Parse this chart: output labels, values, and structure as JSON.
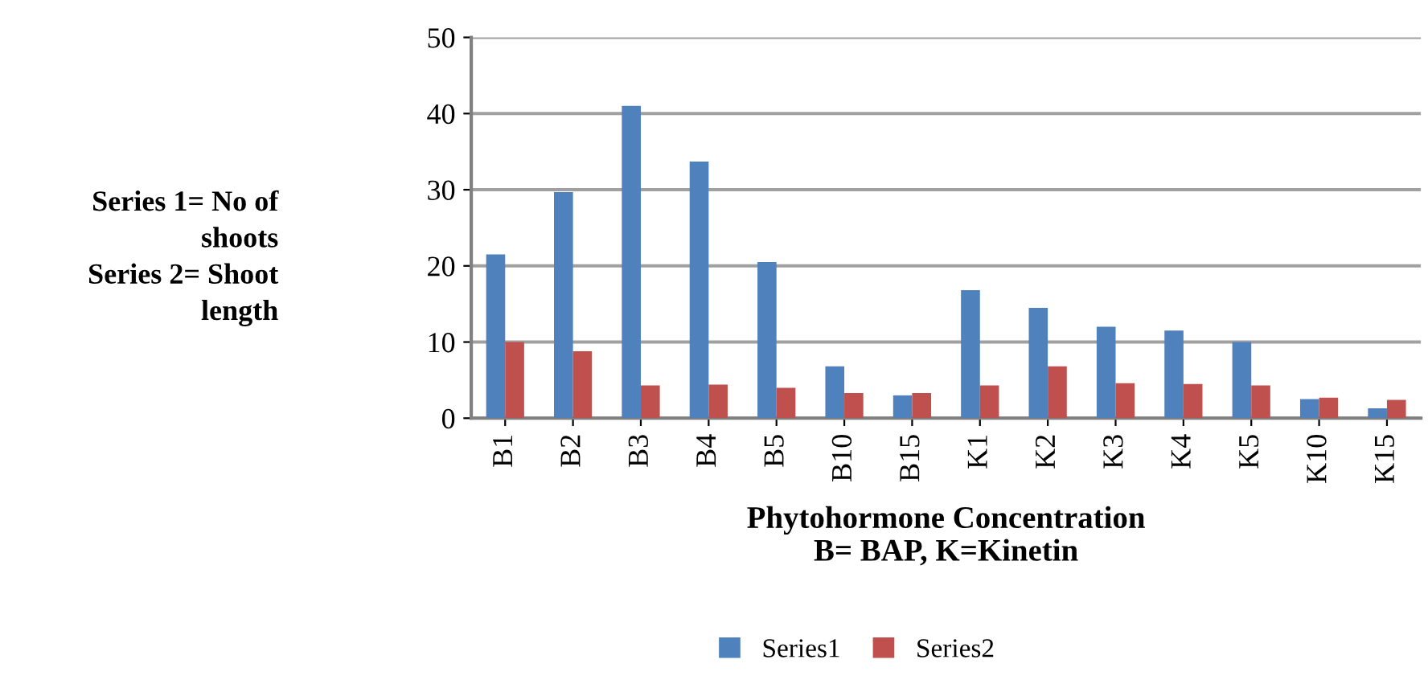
{
  "chart_data": {
    "type": "bar",
    "categories": [
      "B1",
      "B2",
      "B3",
      "B4",
      "B5",
      "B10",
      "B15",
      "K1",
      "K2",
      "K3",
      "K4",
      "K5",
      "K10",
      "K15"
    ],
    "series": [
      {
        "name": "Series1",
        "color": "#4f81bd",
        "values": [
          21.5,
          29.7,
          41,
          33.7,
          20.5,
          6.8,
          3,
          16.8,
          14.5,
          12,
          11.5,
          10,
          2.5,
          1.3
        ]
      },
      {
        "name": "Series2",
        "color": "#c0504d",
        "values": [
          10,
          8.8,
          4.3,
          4.4,
          4,
          3.3,
          3.3,
          4.3,
          6.8,
          4.6,
          4.5,
          4.3,
          2.7,
          2.4
        ]
      }
    ],
    "xlabel": "Phytohormone Concentration\nB= BAP, K=Kinetin",
    "annotations": [
      "Series 1= No of\nshoots\nSeries 2= Shoot\nlength"
    ],
    "ylim": [
      0,
      50
    ],
    "yticks": [
      0,
      10,
      20,
      30,
      40,
      50
    ],
    "grid": "y",
    "legend": "bottom"
  }
}
